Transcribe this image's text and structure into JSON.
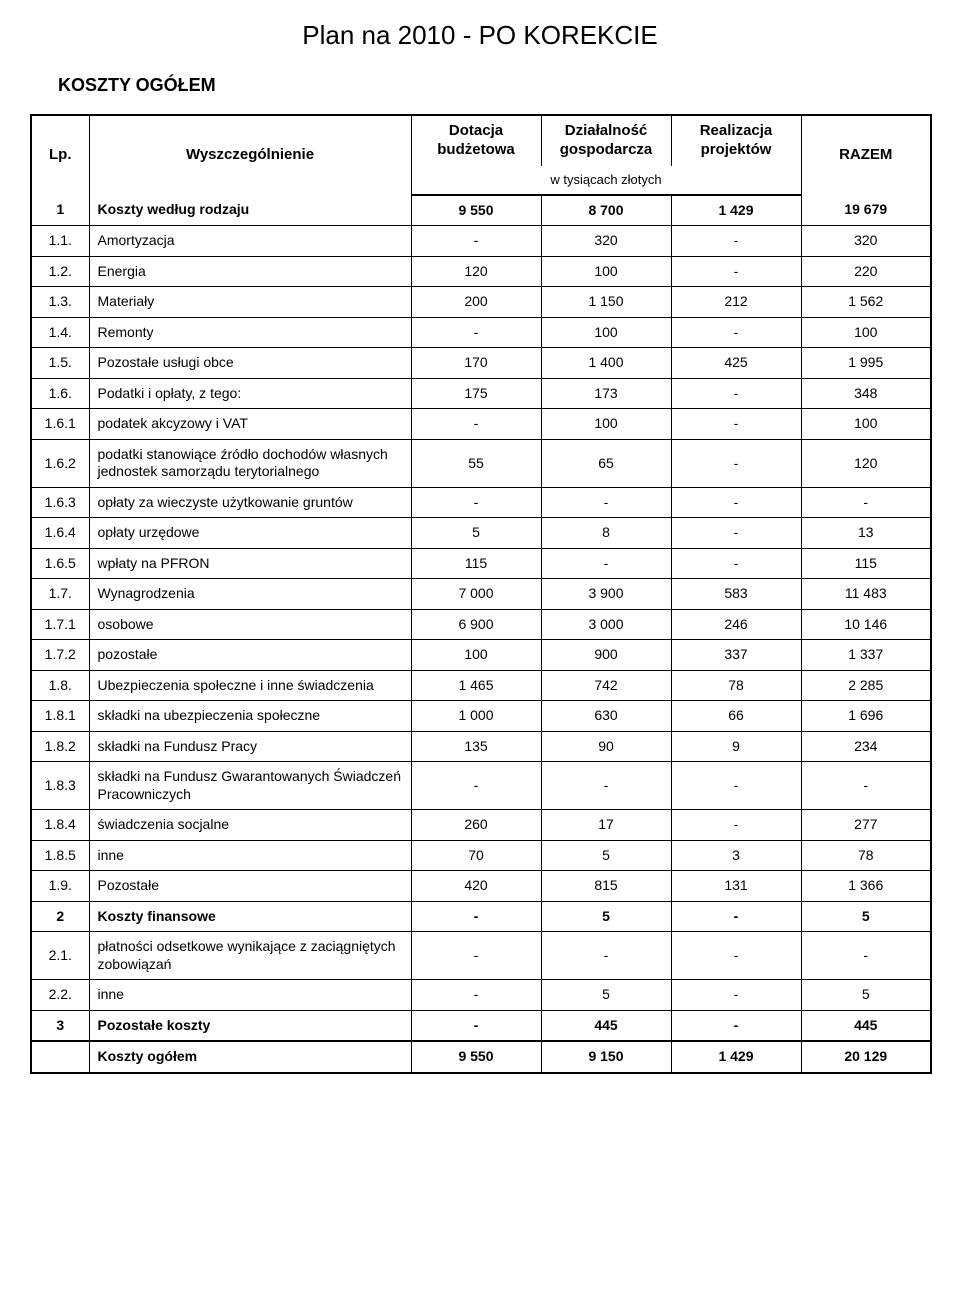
{
  "title": "Plan na 2010 - PO KOREKCIE",
  "subtitle": "KOSZTY OGÓŁEM",
  "columns": {
    "lp": "Lp.",
    "desc": "Wyszczególnienie",
    "c1": "Dotacja budżetowa",
    "c2": "Działalność gospodarcza",
    "c3": "Realizacja projektów",
    "c4": "RAZEM",
    "note": "w tysiącach złotych"
  },
  "rows": [
    {
      "lp": "1",
      "desc": "Koszty według rodzaju",
      "v": [
        "9 550",
        "8 700",
        "1 429",
        "19 679"
      ],
      "bold": true
    },
    {
      "lp": "1.1.",
      "desc": "Amortyzacja",
      "v": [
        "-",
        "320",
        "-",
        "320"
      ]
    },
    {
      "lp": "1.2.",
      "desc": "Energia",
      "v": [
        "120",
        "100",
        "-",
        "220"
      ]
    },
    {
      "lp": "1.3.",
      "desc": "Materiały",
      "v": [
        "200",
        "1 150",
        "212",
        "1 562"
      ]
    },
    {
      "lp": "1.4.",
      "desc": "Remonty",
      "v": [
        "-",
        "100",
        "-",
        "100"
      ]
    },
    {
      "lp": "1.5.",
      "desc": "Pozostałe usługi obce",
      "v": [
        "170",
        "1 400",
        "425",
        "1 995"
      ]
    },
    {
      "lp": "1.6.",
      "desc": "Podatki i opłaty, z tego:",
      "v": [
        "175",
        "173",
        "-",
        "348"
      ]
    },
    {
      "lp": "1.6.1",
      "desc": "podatek akcyzowy i VAT",
      "v": [
        "-",
        "100",
        "-",
        "100"
      ]
    },
    {
      "lp": "1.6.2",
      "desc": "podatki stanowiące źródło dochodów własnych jednostek samorządu terytorialnego",
      "v": [
        "55",
        "65",
        "-",
        "120"
      ]
    },
    {
      "lp": "1.6.3",
      "desc": "opłaty za wieczyste użytkowanie gruntów",
      "v": [
        "-",
        "-",
        "-",
        "-"
      ]
    },
    {
      "lp": "1.6.4",
      "desc": "opłaty urzędowe",
      "v": [
        "5",
        "8",
        "-",
        "13"
      ]
    },
    {
      "lp": "1.6.5",
      "desc": "wpłaty na PFRON",
      "v": [
        "115",
        "-",
        "-",
        "115"
      ]
    },
    {
      "lp": "1.7.",
      "desc": "Wynagrodzenia",
      "v": [
        "7 000",
        "3 900",
        "583",
        "11 483"
      ]
    },
    {
      "lp": "1.7.1",
      "desc": "osobowe",
      "v": [
        "6 900",
        "3 000",
        "246",
        "10 146"
      ]
    },
    {
      "lp": "1.7.2",
      "desc": "pozostałe",
      "v": [
        "100",
        "900",
        "337",
        "1 337"
      ]
    },
    {
      "lp": "1.8.",
      "desc": "Ubezpieczenia społeczne i inne świadczenia",
      "v": [
        "1 465",
        "742",
        "78",
        "2 285"
      ]
    },
    {
      "lp": "1.8.1",
      "desc": "składki na ubezpieczenia społeczne",
      "v": [
        "1 000",
        "630",
        "66",
        "1 696"
      ]
    },
    {
      "lp": "1.8.2",
      "desc": "składki na Fundusz Pracy",
      "v": [
        "135",
        "90",
        "9",
        "234"
      ]
    },
    {
      "lp": "1.8.3",
      "desc": "składki na Fundusz Gwarantowanych Świadczeń Pracowniczych",
      "v": [
        "-",
        "-",
        "-",
        "-"
      ]
    },
    {
      "lp": "1.8.4",
      "desc": "świadczenia socjalne",
      "v": [
        "260",
        "17",
        "-",
        "277"
      ]
    },
    {
      "lp": "1.8.5",
      "desc": "inne",
      "v": [
        "70",
        "5",
        "3",
        "78"
      ]
    },
    {
      "lp": "1.9.",
      "desc": "Pozostałe",
      "v": [
        "420",
        "815",
        "131",
        "1 366"
      ]
    },
    {
      "lp": "2",
      "desc": "Koszty finansowe",
      "v": [
        "-",
        "5",
        "-",
        "5"
      ],
      "bold": true
    },
    {
      "lp": "2.1.",
      "desc": "płatności odsetkowe wynikające z zaciągniętych zobowiązań",
      "v": [
        "-",
        "-",
        "-",
        "-"
      ]
    },
    {
      "lp": "2.2.",
      "desc": "inne",
      "v": [
        "-",
        "5",
        "-",
        "5"
      ]
    },
    {
      "lp": "3",
      "desc": "Pozostałe koszty",
      "v": [
        "-",
        "445",
        "-",
        "445"
      ],
      "bold": true
    }
  ],
  "total": {
    "lp": "",
    "desc": "Koszty ogółem",
    "v": [
      "9 550",
      "9 150",
      "1 429",
      "20 129"
    ]
  }
}
